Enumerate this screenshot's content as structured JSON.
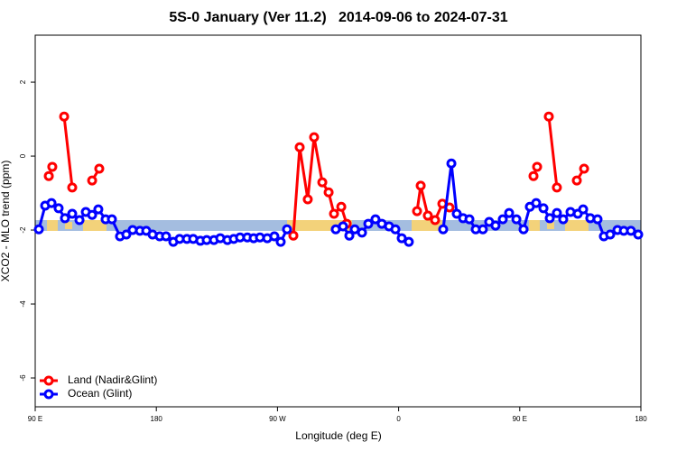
{
  "chart_data": {
    "type": "line",
    "title": "5S-0 January (Ver 11.2)   2014-09-06 to 2024-07-31",
    "xlabel": "Longitude (deg E)",
    "ylabel": "XCO2 - MLO trend (ppm)",
    "xlim": [
      90,
      540
    ],
    "ylim": [
      -6.78,
      3.27
    ],
    "xticks": [
      {
        "value": 90,
        "label": "90 E"
      },
      180,
      {
        "value": 270,
        "label": "90 W"
      },
      {
        "value": 360,
        "label": "0"
      },
      {
        "value": 450,
        "label": "90 E"
      },
      {
        "value": 540,
        "label": "180"
      }
    ],
    "yticks": [
      -6,
      -4,
      -2,
      0,
      2
    ],
    "legend": "bottom-left",
    "series": [
      {
        "name": "Land (Nadir&Glint)",
        "color": "#ff0000",
        "x": [
          100.1,
          102.7,
          106,
          111.5,
          117.5,
          122,
          132.3,
          137.6,
          200,
          281.8,
          286.5,
          292.5,
          297.2,
          303.3,
          308.0,
          312.0,
          317.4,
          321.4,
          350,
          373.7,
          376.4,
          381.7,
          387.1,
          392.5,
          397.8,
          420,
          460.2,
          462.9,
          466,
          471.6,
          477.6,
          485,
          492.4,
          497.8
        ],
        "values": [
          -0.54,
          -0.29,
          null,
          1.07,
          -0.85,
          null,
          -0.66,
          -0.34,
          null,
          -2.15,
          0.24,
          -1.17,
          0.51,
          -0.71,
          -0.98,
          -1.56,
          -1.37,
          -1.83,
          null,
          -1.49,
          -0.8,
          -1.61,
          -1.73,
          -1.29,
          -1.39,
          null,
          -0.54,
          -0.29,
          null,
          1.07,
          -0.85,
          null,
          -0.66,
          -0.34
        ]
      },
      {
        "name": "Ocean (Glint)",
        "color": "#0000ff",
        "x": [
          92.7,
          97.4,
          102.1,
          107.4,
          112.1,
          117.5,
          122.9,
          127.6,
          132.3,
          136.9,
          142.3,
          147.0,
          153.0,
          157.7,
          162.4,
          167.8,
          172.5,
          177.2,
          182.5,
          187.2,
          192.6,
          197.3,
          202.7,
          207.4,
          212.7,
          217.4,
          222.8,
          227.5,
          232.8,
          237.5,
          242.2,
          247.6,
          252.3,
          257.0,
          262.4,
          267.7,
          272.4,
          277.1,
          300,
          313.3,
          318.7,
          323.4,
          327.4,
          332.8,
          337.5,
          342.8,
          347.5,
          352.9,
          357.6,
          362.3,
          367.6,
          380,
          393.1,
          399.2,
          403.2,
          407.9,
          412.6,
          417.3,
          422.6,
          427.3,
          432.0,
          437.4,
          442.1,
          447.5,
          452.8,
          457.5,
          462.2,
          467.6,
          472.3,
          477.6,
          482.3,
          487.7,
          493.1,
          497.1,
          502.4,
          507.8,
          512.5,
          517.2,
          522.6,
          527.3,
          532.6,
          538.0
        ],
        "values": [
          -1.98,
          -1.34,
          -1.27,
          -1.41,
          -1.68,
          -1.56,
          -1.73,
          -1.51,
          -1.59,
          -1.44,
          -1.71,
          -1.71,
          -2.17,
          -2.12,
          -2.0,
          -2.02,
          -2.02,
          -2.12,
          -2.17,
          -2.17,
          -2.32,
          -2.24,
          -2.24,
          -2.24,
          -2.29,
          -2.27,
          -2.27,
          -2.22,
          -2.27,
          -2.24,
          -2.2,
          -2.2,
          -2.22,
          -2.2,
          -2.22,
          -2.17,
          -2.32,
          -1.98,
          null,
          -1.98,
          -1.9,
          -2.15,
          -1.98,
          -2.07,
          -1.83,
          -1.71,
          -1.83,
          -1.9,
          -1.98,
          -2.22,
          -2.32,
          null,
          -1.98,
          -0.2,
          -1.56,
          -1.68,
          -1.71,
          -1.98,
          -1.98,
          -1.78,
          -1.88,
          -1.71,
          -1.54,
          -1.71,
          -1.98,
          -1.37,
          -1.27,
          -1.41,
          -1.68,
          -1.54,
          -1.71,
          -1.51,
          -1.56,
          -1.44,
          -1.68,
          -1.71,
          -2.17,
          -2.12,
          -2.0,
          -2.02,
          -2.02,
          -2.12
        ]
      }
    ]
  }
}
